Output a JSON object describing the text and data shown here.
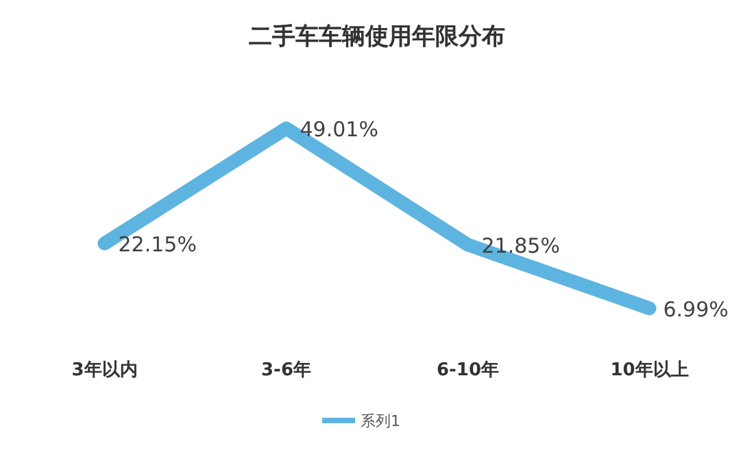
{
  "chart_data": {
    "type": "line",
    "title": "二手车车辆使用年限分布",
    "categories": [
      "3年以内",
      "3-6年",
      "6-10年",
      "10年以上"
    ],
    "series": [
      {
        "name": "系列1",
        "color": "#5eb4e0",
        "values": [
          22.15,
          49.01,
          21.85,
          6.99
        ],
        "value_labels": [
          "22.15%",
          "49.01%",
          "21.85%",
          "6.99%"
        ]
      }
    ],
    "legend": "bottom",
    "grid": false,
    "marker": "none",
    "line_style": "solid"
  }
}
